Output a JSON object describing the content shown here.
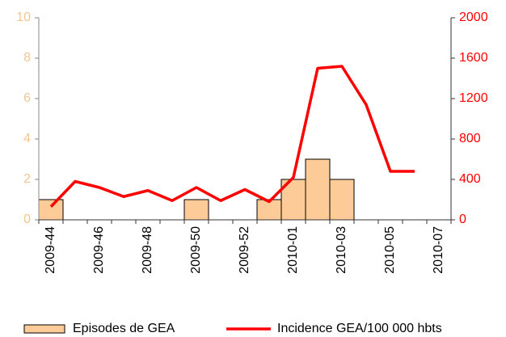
{
  "chart_data": {
    "type": "bar_line",
    "categories": [
      "2009-44",
      null,
      "2009-46",
      null,
      "2009-48",
      null,
      "2009-50",
      null,
      "2009-52",
      null,
      "2010-01",
      null,
      "2010-03",
      null,
      "2010-05",
      null,
      "2010-07"
    ],
    "series": [
      {
        "name": "Episodes de GEA",
        "type": "bar",
        "color": "#fccb98",
        "values": [
          1,
          0,
          0,
          0,
          0,
          0,
          1,
          0,
          0,
          1,
          2,
          3,
          2,
          0,
          0,
          0,
          0
        ]
      },
      {
        "name": "Incidence GEA/100 000 hbts",
        "type": "line",
        "axis": "y2",
        "color": "#ff0000",
        "values": [
          130,
          380,
          320,
          230,
          290,
          190,
          320,
          190,
          300,
          180,
          420,
          1500,
          1520,
          1140,
          480,
          480,
          null
        ]
      }
    ],
    "ylim": [
      0,
      10
    ],
    "yticks": [
      0,
      2,
      4,
      6,
      8,
      10
    ],
    "ytick_color": "#f5c48f",
    "y2lim": [
      0,
      2000
    ],
    "y2ticks": [
      0,
      400,
      800,
      1200,
      1600,
      2000
    ],
    "y2tick_color": "#ff0000"
  }
}
